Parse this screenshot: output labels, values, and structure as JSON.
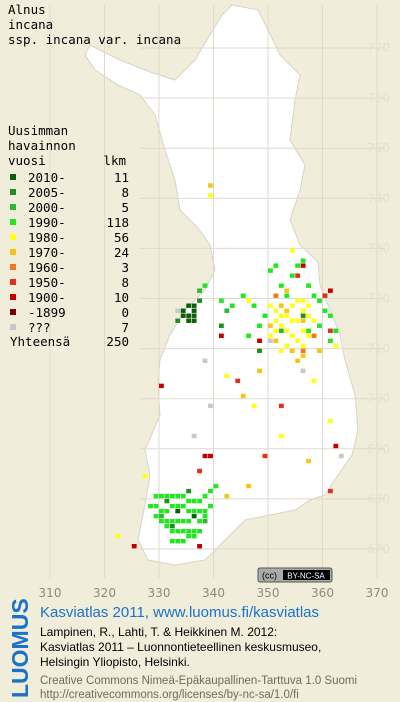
{
  "header": {
    "lines": [
      "Alnus",
      "incana",
      "ssp. incana var. incana"
    ]
  },
  "legend": {
    "heading": [
      "Uusimman",
      "havainnon",
      "vuosi"
    ],
    "count_heading": "lkm",
    "entries": [
      {
        "label": "2010-",
        "count": 11,
        "color": "#0b5e0b",
        "points": [
          [
            335,
            718
          ],
          [
            336,
            718
          ],
          [
            336,
            717
          ],
          [
            335,
            716
          ],
          [
            336,
            716
          ],
          [
            334,
            717
          ],
          [
            336,
            715
          ],
          [
            335,
            715
          ],
          [
            334,
            716
          ],
          [
            333,
            677
          ],
          [
            336,
            676
          ]
        ]
      },
      {
        "label": "2005-",
        "count": 8,
        "color": "#1f8f1f",
        "points": [
          [
            337,
            719
          ],
          [
            333,
            715
          ],
          [
            341,
            714
          ],
          [
            331,
            679
          ],
          [
            335,
            681
          ],
          [
            348,
            709
          ],
          [
            356,
            716
          ],
          [
            332,
            674
          ]
        ]
      },
      {
        "label": "2000-",
        "count": 5,
        "color": "#2eb82e",
        "points": [
          [
            337,
            721
          ],
          [
            342,
            717
          ],
          [
            352,
            713
          ],
          [
            330,
            676
          ],
          [
            338,
            675
          ]
        ]
      },
      {
        "label": "1990-",
        "count": 118,
        "color": "#22e622",
        "points": [
          [
            329,
            680
          ],
          [
            330,
            680
          ],
          [
            331,
            680
          ],
          [
            332,
            680
          ],
          [
            333,
            680
          ],
          [
            334,
            680
          ],
          [
            335,
            679
          ],
          [
            336,
            679
          ],
          [
            337,
            679
          ],
          [
            338,
            680
          ],
          [
            328,
            678
          ],
          [
            329,
            678
          ],
          [
            330,
            677
          ],
          [
            331,
            677
          ],
          [
            332,
            678
          ],
          [
            333,
            678
          ],
          [
            334,
            678
          ],
          [
            335,
            677
          ],
          [
            336,
            677
          ],
          [
            337,
            677
          ],
          [
            338,
            677
          ],
          [
            329,
            676
          ],
          [
            330,
            675
          ],
          [
            331,
            675
          ],
          [
            332,
            675
          ],
          [
            333,
            675
          ],
          [
            334,
            675
          ],
          [
            335,
            675
          ],
          [
            337,
            675
          ],
          [
            338,
            676
          ],
          [
            331,
            674
          ],
          [
            332,
            673
          ],
          [
            333,
            673
          ],
          [
            334,
            673
          ],
          [
            335,
            673
          ],
          [
            336,
            673
          ],
          [
            337,
            673
          ],
          [
            332,
            671
          ],
          [
            333,
            671
          ],
          [
            334,
            671
          ],
          [
            335,
            672
          ],
          [
            336,
            672
          ],
          [
            339,
            681
          ],
          [
            340,
            682
          ],
          [
            339,
            678
          ],
          [
            341,
            719
          ],
          [
            343,
            718
          ],
          [
            345,
            720
          ],
          [
            347,
            718
          ],
          [
            350,
            725
          ],
          [
            351,
            726
          ],
          [
            352,
            722
          ],
          [
            353,
            720
          ],
          [
            354,
            724
          ],
          [
            355,
            726
          ],
          [
            356,
            727
          ],
          [
            357,
            722
          ],
          [
            358,
            720
          ],
          [
            359,
            719
          ],
          [
            360,
            720
          ],
          [
            361,
            716
          ],
          [
            362,
            713
          ],
          [
            361,
            711
          ],
          [
            357,
            713
          ],
          [
            348,
            714
          ],
          [
            346,
            712
          ],
          [
            349,
            716
          ],
          [
            338,
            722
          ],
          [
            359,
            714
          ],
          [
            360,
            717
          ]
        ]
      },
      {
        "label": "1980-",
        "count": 56,
        "color": "#ffff1a",
        "points": [
          [
            350,
            718
          ],
          [
            351,
            717
          ],
          [
            352,
            716
          ],
          [
            351,
            715
          ],
          [
            352,
            714
          ],
          [
            353,
            713
          ],
          [
            354,
            712
          ],
          [
            355,
            711
          ],
          [
            351,
            713
          ],
          [
            350,
            712
          ],
          [
            353,
            716
          ],
          [
            354,
            718
          ],
          [
            355,
            719
          ],
          [
            356,
            719
          ],
          [
            357,
            718
          ],
          [
            356,
            717
          ],
          [
            355,
            715
          ],
          [
            354,
            715
          ],
          [
            357,
            716
          ],
          [
            358,
            715
          ],
          [
            356,
            713
          ],
          [
            357,
            712
          ],
          [
            353,
            710
          ],
          [
            352,
            709
          ],
          [
            356,
            710
          ],
          [
            362,
            710
          ],
          [
            342,
            704
          ],
          [
            347,
            698
          ],
          [
            352,
            692
          ],
          [
            322,
            672
          ],
          [
            327,
            684
          ],
          [
            339,
            740
          ],
          [
            346,
            719
          ],
          [
            358,
            703
          ],
          [
            361,
            695
          ],
          [
            354,
            729
          ]
        ]
      },
      {
        "label": "1970-",
        "count": 24,
        "color": "#f5c518",
        "points": [
          [
            352,
            718
          ],
          [
            353,
            717
          ],
          [
            350,
            714
          ],
          [
            351,
            711
          ],
          [
            354,
            709
          ],
          [
            355,
            707
          ],
          [
            356,
            708
          ],
          [
            353,
            721
          ],
          [
            339,
            742
          ],
          [
            345,
            700
          ],
          [
            356,
            715
          ],
          [
            346,
            682
          ],
          [
            357,
            687
          ],
          [
            342,
            680
          ],
          [
            348,
            705
          ],
          [
            359,
            709
          ]
        ]
      },
      {
        "label": "1960-",
        "count": 3,
        "color": "#f07a1a",
        "points": [
          [
            356,
            709
          ],
          [
            358,
            712
          ],
          [
            351,
            720
          ]
        ]
      },
      {
        "label": "1950-",
        "count": 8,
        "color": "#e0301e",
        "points": [
          [
            349,
            688
          ],
          [
            337,
            685
          ],
          [
            361,
            681
          ],
          [
            360,
            720
          ],
          [
            361,
            713
          ],
          [
            352,
            698
          ],
          [
            344,
            703
          ],
          [
            355,
            724
          ]
        ]
      },
      {
        "label": "1900-",
        "count": 10,
        "color": "#c40000",
        "points": [
          [
            338,
            688
          ],
          [
            339,
            688
          ],
          [
            325,
            670
          ],
          [
            337,
            670
          ],
          [
            330,
            702
          ],
          [
            362,
            690
          ],
          [
            341,
            712
          ],
          [
            361,
            721
          ],
          [
            356,
            726
          ],
          [
            348,
            711
          ]
        ]
      },
      {
        "label": "-1899",
        "count": 0,
        "color": "#7a0000",
        "points": []
      },
      {
        "label": "???",
        "count": 7,
        "color": "#c8c8c8",
        "points": [
          [
            333,
            717
          ],
          [
            339,
            698
          ],
          [
            336,
            692
          ],
          [
            338,
            707
          ],
          [
            363,
            688
          ],
          [
            350,
            711
          ],
          [
            356,
            705
          ]
        ]
      }
    ],
    "total_label": "Yhteensä",
    "total": 250
  },
  "map": {
    "xlim": [
      310,
      370
    ],
    "ylim": [
      670,
      770
    ],
    "xticks": [
      310,
      320,
      330,
      340,
      350,
      360,
      370
    ],
    "yticks": [
      670,
      680,
      690,
      700,
      710,
      720,
      730,
      740,
      750,
      760,
      770
    ]
  },
  "badge": {
    "cc": "(cc)",
    "text": "BY-NC-SA"
  },
  "footer": {
    "logo": "LUOMUS",
    "link": "Kasviatlas 2011, www.luomus.fi/kasviatlas",
    "citation": [
      "Lampinen, R., Lahti, T. & Heikkinen M. 2012:",
      "Kasviatlas 2011 – Luonnontieteellinen keskusmuseo,",
      "Helsingin Yliopisto, Helsinki."
    ],
    "license": [
      "Creative Commons Nimeä-Epäkaupallinen-Tarttuva 1.0 Suomi",
      "http://creativecommons.org/licenses/by-nc-sa/1.0/fi"
    ]
  }
}
